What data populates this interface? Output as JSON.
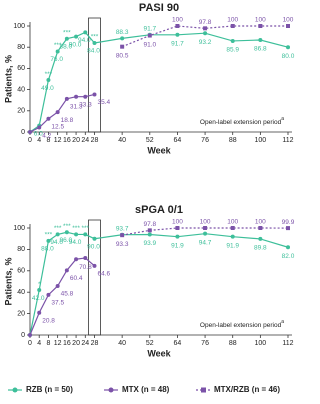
{
  "chart_data": [
    {
      "type": "line",
      "title": "PASI 90",
      "x_label": "Week",
      "y_label": "Patients, %",
      "annotation": "Open-label extension period",
      "annotation_sup": "a",
      "x": [
        0,
        4,
        8,
        12,
        16,
        20,
        24,
        28,
        40,
        52,
        64,
        76,
        88,
        100,
        112
      ],
      "xticks": [
        0,
        4,
        8,
        12,
        16,
        20,
        24,
        28,
        40,
        52,
        64,
        76,
        88,
        100,
        112
      ],
      "ylim": [
        0,
        100
      ],
      "yticks": [
        0,
        20,
        40,
        60,
        80,
        100
      ],
      "series": [
        {
          "name": "RZB (n = 50)",
          "color": "#3dbf9a",
          "marker": "circle",
          "dashed": false,
          "values": [
            0,
            6.0,
            49.0,
            76.0,
            88.0,
            90.0,
            94.0,
            84.0,
            88.3,
            91.7,
            91.7,
            93.2,
            85.9,
            86.8,
            80.0
          ],
          "value_labels": [
            null,
            "6.0",
            "49.0",
            "76.0",
            "88.0",
            "90.0",
            "94.0",
            "84.0",
            "88.3",
            "91.7",
            "91.7",
            "93.2",
            "85.9",
            "86.8",
            "80.0"
          ]
        },
        {
          "name": "MTX (n = 48)",
          "color": "#7b52a8",
          "marker": "circle",
          "dashed": false,
          "values": [
            0,
            4.2,
            12.5,
            18.8,
            31.3,
            33.3,
            33.3,
            35.4,
            null,
            null,
            null,
            null,
            null,
            null,
            null
          ],
          "value_labels": [
            null,
            "4.2",
            "12.5",
            "18.8",
            "31.3",
            "33.3",
            null,
            "35.4",
            null,
            null,
            null,
            null,
            null,
            null,
            null
          ]
        },
        {
          "name": "MTX/RZB (n = 46)",
          "color": "#7b52a8",
          "marker": "square",
          "dashed": true,
          "values": [
            null,
            null,
            null,
            null,
            null,
            null,
            null,
            null,
            80.5,
            91.0,
            100,
            97.8,
            100,
            100,
            100
          ],
          "value_labels": [
            null,
            null,
            null,
            null,
            null,
            null,
            null,
            null,
            "80.5",
            "91.0",
            "100",
            "97.8",
            "100",
            "100",
            "100"
          ]
        }
      ],
      "significance": [
        {
          "x": 8,
          "label": "***"
        },
        {
          "x": 12,
          "label": "***"
        },
        {
          "x": 16,
          "label": "***"
        },
        {
          "x": 28,
          "label": "***"
        }
      ]
    },
    {
      "type": "line",
      "title": "sPGA 0/1",
      "x_label": "Week",
      "y_label": "Patients, %",
      "annotation": "Open-label extension period",
      "annotation_sup": "a",
      "x": [
        0,
        4,
        8,
        12,
        16,
        20,
        24,
        28,
        40,
        52,
        64,
        76,
        88,
        100,
        112
      ],
      "xticks": [
        0,
        4,
        8,
        12,
        16,
        20,
        24,
        28,
        40,
        52,
        64,
        76,
        88,
        100,
        112
      ],
      "ylim": [
        0,
        100
      ],
      "yticks": [
        0,
        20,
        40,
        60,
        80,
        100
      ],
      "series": [
        {
          "name": "RZB (n = 50)",
          "color": "#3dbf9a",
          "marker": "circle",
          "dashed": false,
          "values": [
            0,
            42.0,
            88.0,
            94.0,
            96.0,
            94.0,
            94.0,
            90.0,
            93.7,
            93.9,
            91.9,
            94.7,
            91.9,
            89.8,
            82.0
          ],
          "value_labels": [
            null,
            "42.0",
            "88.0",
            "94.0",
            "96.0",
            "94.0",
            null,
            "90.0",
            "93.7",
            "93.9",
            "91.9",
            "94.7",
            "91.9",
            "89.8",
            "82.0"
          ]
        },
        {
          "name": "MTX (n = 48)",
          "color": "#7b52a8",
          "marker": "circle",
          "dashed": false,
          "values": [
            0,
            20.8,
            37.5,
            45.8,
            60.4,
            70.8,
            72,
            64.6,
            null,
            null,
            null,
            null,
            null,
            null,
            null
          ],
          "value_labels": [
            null,
            "20.8",
            "37.5",
            "45.8",
            "60.4",
            "70.8",
            null,
            "64.6",
            null,
            null,
            null,
            null,
            null,
            null,
            null
          ]
        },
        {
          "name": "MTX/RZB (n = 46)",
          "color": "#7b52a8",
          "marker": "square",
          "dashed": true,
          "values": [
            null,
            null,
            null,
            null,
            null,
            null,
            null,
            null,
            93.3,
            97.8,
            100,
            100,
            100,
            100,
            99.9
          ],
          "value_labels": [
            null,
            null,
            null,
            null,
            null,
            null,
            null,
            null,
            "93.3",
            "97.8",
            "100",
            "100",
            "100",
            "100",
            "99.9"
          ]
        }
      ],
      "significance": [
        {
          "x": 4,
          "label": "*"
        },
        {
          "x": 8,
          "label": "***"
        },
        {
          "x": 12,
          "label": "***"
        },
        {
          "x": 16,
          "label": "***"
        },
        {
          "x": 20,
          "label": "***"
        },
        {
          "x": 24,
          "label": "***"
        }
      ]
    }
  ]
}
